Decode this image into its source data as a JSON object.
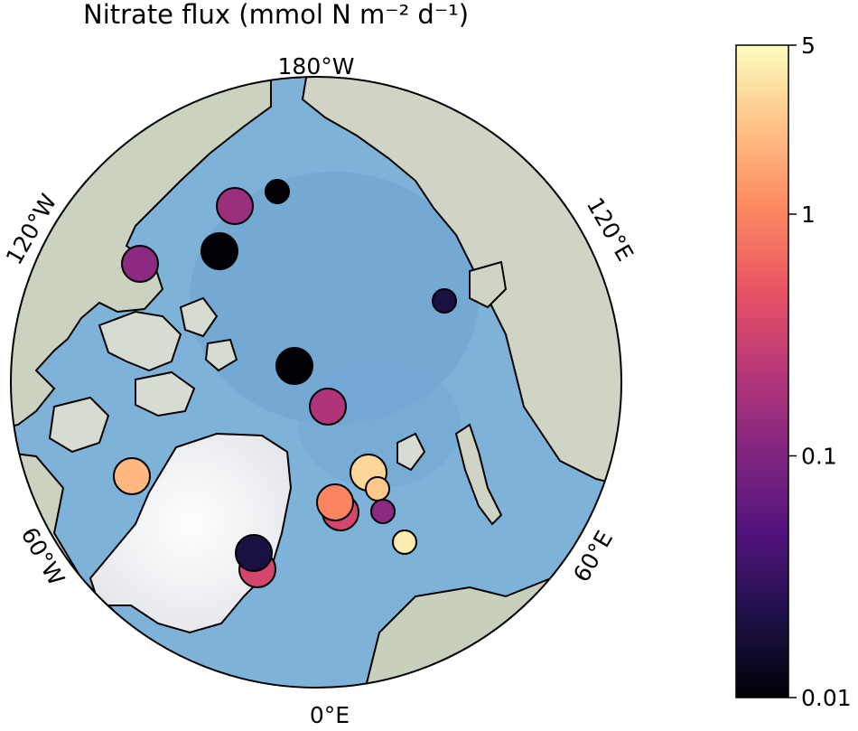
{
  "title": "Nitrate flux (mmol N m⁻² d⁻¹)",
  "map": {
    "projection": "north-polar-stereographic",
    "longitude_labels": [
      "180°W",
      "120°W",
      "120°E",
      "60°W",
      "60°E",
      "0°E"
    ],
    "ocean_color": "#7fb2d8",
    "land_color": "#c9d3c0",
    "ice_color": "#f4f4f6"
  },
  "colorbar": {
    "scale": "log",
    "colormap": "magma",
    "min": 0.01,
    "max": 5,
    "tick_labels": [
      "5",
      "1",
      "0.1",
      "0.01"
    ],
    "tick_values": [
      5,
      1,
      0.1,
      0.01
    ]
  },
  "chart_data": {
    "type": "scatter",
    "title": "Nitrate flux (mmol N m⁻² d⁻¹)",
    "legend": "colorbar-right",
    "points": [
      {
        "id": "s1",
        "flux": 0.01,
        "size": "small"
      },
      {
        "id": "s2",
        "flux": 0.15,
        "size": "large"
      },
      {
        "id": "s3",
        "flux": 0.01,
        "size": "large"
      },
      {
        "id": "s4",
        "flux": 0.12,
        "size": "large"
      },
      {
        "id": "s5",
        "flux": 0.02,
        "size": "small"
      },
      {
        "id": "s6",
        "flux": 0.01,
        "size": "large"
      },
      {
        "id": "s7",
        "flux": 0.2,
        "size": "large"
      },
      {
        "id": "s8",
        "flux": 2.0,
        "size": "large"
      },
      {
        "id": "s9",
        "flux": 3.0,
        "size": "large"
      },
      {
        "id": "s10",
        "flux": 2.5,
        "size": "small"
      },
      {
        "id": "s11",
        "flux": 0.35,
        "size": "large"
      },
      {
        "id": "s12",
        "flux": 1.0,
        "size": "large"
      },
      {
        "id": "s13",
        "flux": 0.12,
        "size": "small"
      },
      {
        "id": "s14",
        "flux": 4.0,
        "size": "small"
      },
      {
        "id": "s15",
        "flux": 0.35,
        "size": "large"
      },
      {
        "id": "s16",
        "flux": 0.02,
        "size": "large"
      }
    ]
  }
}
